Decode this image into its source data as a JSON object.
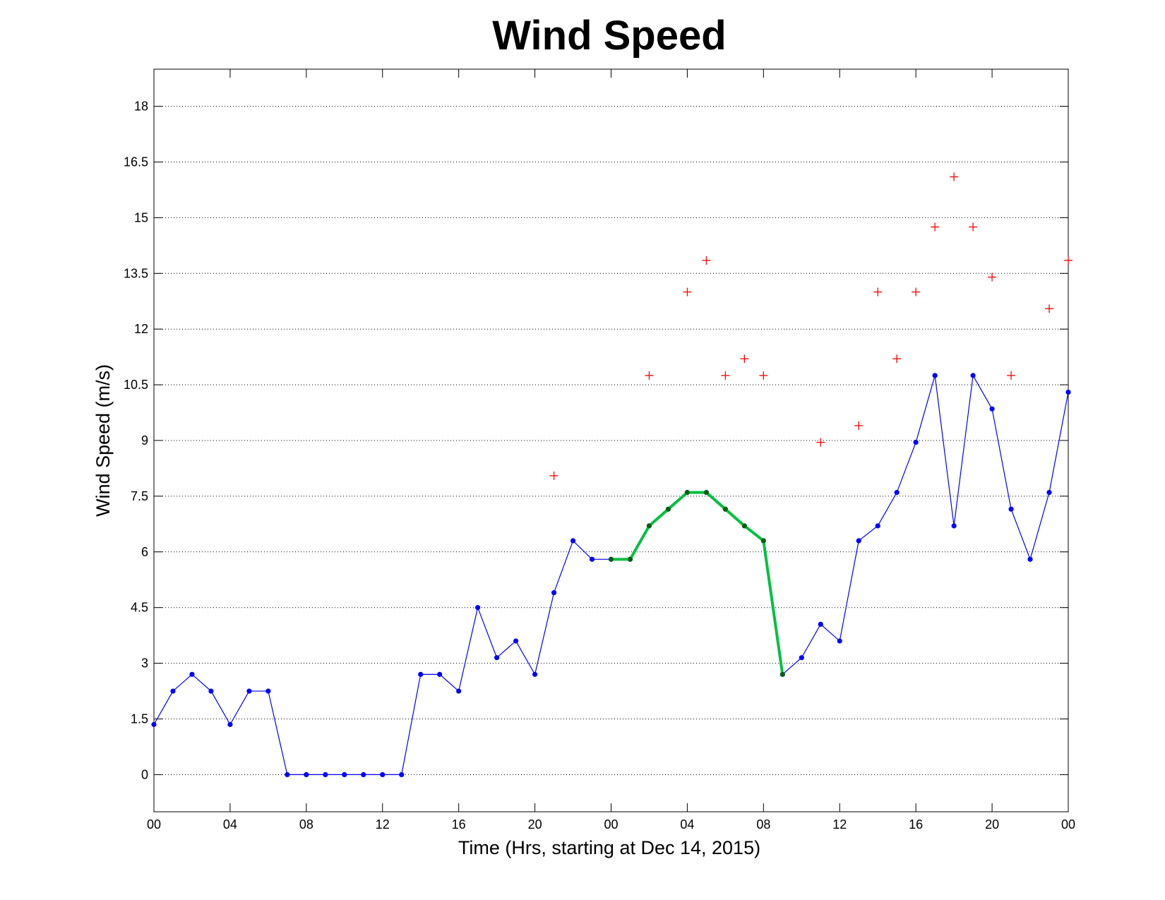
{
  "chart_data": {
    "type": "line",
    "title": "Wind Speed",
    "xlabel": "Time (Hrs, starting at Dec 14, 2015)",
    "ylabel": "Wind Speed (m/s)",
    "xlim": [
      0,
      48
    ],
    "ylim": [
      -1,
      19
    ],
    "grid": "y-dotted",
    "x_tick_values": [
      0,
      4,
      8,
      12,
      16,
      20,
      24,
      28,
      32,
      36,
      40,
      44,
      48
    ],
    "x_tick_labels": [
      "00",
      "04",
      "08",
      "12",
      "16",
      "20",
      "00",
      "04",
      "08",
      "12",
      "16",
      "20",
      "00"
    ],
    "y_tick_values": [
      0,
      1.5,
      3,
      4.5,
      6,
      7.5,
      9,
      10.5,
      12,
      13.5,
      15,
      16.5,
      18
    ],
    "y_tick_labels": [
      "0",
      "1.5",
      "3",
      "4.5",
      "6",
      "7.5",
      "9",
      "10.5",
      "12",
      "13.5",
      "15",
      "16.5",
      "18"
    ],
    "series": [
      {
        "style": "line-markers",
        "color": "#0000ff",
        "x": [
          0,
          1,
          2,
          3,
          4,
          5,
          6,
          7,
          8,
          9,
          10,
          11,
          12,
          13,
          14,
          15,
          16,
          17,
          18,
          19,
          20,
          21,
          22,
          23,
          24,
          25,
          26,
          27,
          28,
          29,
          30,
          31,
          32,
          33,
          34,
          35,
          36,
          37,
          38,
          39,
          40,
          41,
          42,
          43,
          44,
          45,
          46,
          47,
          48
        ],
        "values": [
          1.35,
          2.25,
          2.7,
          2.25,
          1.35,
          2.25,
          2.25,
          0,
          0,
          0,
          0,
          0,
          0,
          0,
          2.7,
          2.7,
          2.25,
          4.5,
          3.15,
          3.6,
          2.7,
          4.9,
          6.3,
          5.8,
          5.8,
          5.8,
          6.7,
          7.15,
          7.6,
          7.6,
          7.15,
          6.7,
          6.3,
          2.7,
          3.15,
          4.05,
          3.6,
          6.3,
          6.7,
          7.6,
          8.95,
          10.75,
          6.7,
          10.75,
          9.85,
          7.15,
          5.8,
          7.6,
          10.3
        ]
      },
      {
        "style": "thick-line",
        "color": "#00c040",
        "marker_color": "#006400",
        "x": [
          24,
          25,
          26,
          27,
          28,
          29,
          30,
          31,
          32,
          33
        ],
        "values": [
          5.8,
          5.8,
          6.7,
          7.15,
          7.6,
          7.6,
          7.15,
          6.7,
          6.3,
          2.7
        ]
      },
      {
        "style": "plus-markers",
        "color": "#ff0000",
        "x": [
          21,
          26,
          28,
          29,
          30,
          31,
          32,
          35,
          37,
          38,
          39,
          40,
          41,
          42,
          43,
          44,
          45,
          47,
          48
        ],
        "values": [
          8.05,
          10.75,
          13.0,
          13.85,
          10.75,
          11.2,
          10.75,
          8.95,
          9.4,
          13.0,
          11.2,
          13.0,
          14.75,
          16.1,
          14.75,
          13.4,
          10.75,
          12.55,
          13.85
        ]
      }
    ]
  }
}
